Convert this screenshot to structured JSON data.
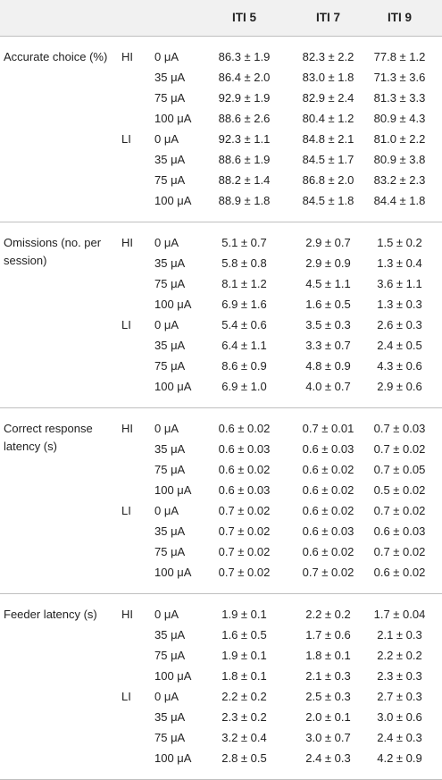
{
  "table": {
    "headers": [
      "ITI 5",
      "ITI 7",
      "ITI 9"
    ],
    "sections": [
      {
        "measure": "Accurate choice (%)",
        "groups": [
          {
            "name": "HI",
            "rows": [
              {
                "dose": "0 μA",
                "values": [
                  "86.3 ± 1.9",
                  "82.3 ± 2.2",
                  "77.8 ± 1.2"
                ]
              },
              {
                "dose": "35 μA",
                "values": [
                  "86.4 ± 2.0",
                  "83.0 ± 1.8",
                  "71.3 ± 3.6"
                ]
              },
              {
                "dose": "75 μA",
                "values": [
                  "92.9 ± 1.9",
                  "82.9 ± 2.4",
                  "81.3 ± 3.3"
                ]
              },
              {
                "dose": "100 μA",
                "values": [
                  "88.6 ± 2.6",
                  "80.4 ± 1.2",
                  "80.9 ± 4.3"
                ]
              }
            ]
          },
          {
            "name": "LI",
            "rows": [
              {
                "dose": "0 μA",
                "values": [
                  "92.3 ± 1.1",
                  "84.8 ± 2.1",
                  "81.0 ± 2.2"
                ]
              },
              {
                "dose": "35 μA",
                "values": [
                  "88.6 ± 1.9",
                  "84.5 ± 1.7",
                  "80.9 ± 3.8"
                ]
              },
              {
                "dose": "75 μA",
                "values": [
                  "88.2 ± 1.4",
                  "86.8 ± 2.0",
                  "83.2 ± 2.3"
                ]
              },
              {
                "dose": "100 μA",
                "values": [
                  "88.9 ± 1.8",
                  "84.5 ± 1.8",
                  "84.4 ± 1.8"
                ]
              }
            ]
          }
        ]
      },
      {
        "measure": "Omissions (no. per session)",
        "groups": [
          {
            "name": "HI",
            "rows": [
              {
                "dose": "0 μA",
                "values": [
                  "5.1 ± 0.7",
                  "2.9 ± 0.7",
                  "1.5 ± 0.2"
                ]
              },
              {
                "dose": "35 μA",
                "values": [
                  "5.8 ± 0.8",
                  "2.9 ± 0.9",
                  "1.3 ± 0.4"
                ]
              },
              {
                "dose": "75 μA",
                "values": [
                  "8.1 ± 1.2",
                  "4.5 ± 1.1",
                  "3.6 ± 1.1"
                ]
              },
              {
                "dose": "100 μA",
                "values": [
                  "6.9 ± 1.6",
                  "1.6 ± 0.5",
                  "1.3 ± 0.3"
                ]
              }
            ]
          },
          {
            "name": "LI",
            "rows": [
              {
                "dose": "0 μA",
                "values": [
                  "5.4 ± 0.6",
                  "3.5 ± 0.3",
                  "2.6 ± 0.3"
                ]
              },
              {
                "dose": "35 μA",
                "values": [
                  "6.4 ± 1.1",
                  "3.3 ± 0.7",
                  "2.4 ± 0.5"
                ]
              },
              {
                "dose": "75 μA",
                "values": [
                  "8.6 ± 0.9",
                  "4.8 ± 0.9",
                  "4.3 ± 0.6"
                ]
              },
              {
                "dose": "100 μA",
                "values": [
                  "6.9 ± 1.0",
                  "4.0 ± 0.7",
                  "2.9 ± 0.6"
                ]
              }
            ]
          }
        ]
      },
      {
        "measure": "Correct response latency (s)",
        "groups": [
          {
            "name": "HI",
            "rows": [
              {
                "dose": "0 μA",
                "values": [
                  "0.6 ± 0.02",
                  "0.7 ± 0.01",
                  "0.7 ± 0.03"
                ]
              },
              {
                "dose": "35 μA",
                "values": [
                  "0.6 ± 0.03",
                  "0.6 ± 0.03",
                  "0.7 ± 0.02"
                ]
              },
              {
                "dose": "75 μA",
                "values": [
                  "0.6 ± 0.02",
                  "0.6 ± 0.02",
                  "0.7 ± 0.05"
                ]
              },
              {
                "dose": "100 μA",
                "values": [
                  "0.6 ± 0.03",
                  "0.6 ± 0.02",
                  "0.5 ± 0.02"
                ]
              }
            ]
          },
          {
            "name": "LI",
            "rows": [
              {
                "dose": "0 μA",
                "values": [
                  "0.7 ± 0.02",
                  "0.6 ± 0.02",
                  "0.7 ± 0.02"
                ]
              },
              {
                "dose": "35 μA",
                "values": [
                  "0.7 ± 0.02",
                  "0.6 ± 0.03",
                  "0.6 ± 0.03"
                ]
              },
              {
                "dose": "75 μA",
                "values": [
                  "0.7 ± 0.02",
                  "0.6 ± 0.02",
                  "0.7 ± 0.02"
                ]
              },
              {
                "dose": "100 μA",
                "values": [
                  "0.7 ± 0.02",
                  "0.7 ± 0.02",
                  "0.6 ± 0.02"
                ]
              }
            ]
          }
        ]
      },
      {
        "measure": "Feeder latency (s)",
        "groups": [
          {
            "name": "HI",
            "rows": [
              {
                "dose": "0 μA",
                "values": [
                  "1.9 ± 0.1",
                  "2.2 ± 0.2",
                  "1.7 ± 0.04"
                ]
              },
              {
                "dose": "35 μA",
                "values": [
                  "1.6 ± 0.5",
                  "1.7 ± 0.6",
                  "2.1 ± 0.3"
                ]
              },
              {
                "dose": "75 μA",
                "values": [
                  "1.9 ± 0.1",
                  "1.8 ± 0.1",
                  "2.2 ± 0.2"
                ]
              },
              {
                "dose": "100 μA",
                "values": [
                  "1.8 ± 0.1",
                  "2.1 ± 0.3",
                  "2.3 ± 0.3"
                ]
              }
            ]
          },
          {
            "name": "LI",
            "rows": [
              {
                "dose": "0 μA",
                "values": [
                  "2.2 ± 0.2",
                  "2.5 ± 0.3",
                  "2.7 ± 0.3"
                ]
              },
              {
                "dose": "35 μA",
                "values": [
                  "2.3 ± 0.2",
                  "2.0 ± 0.1",
                  "3.0 ± 0.6"
                ]
              },
              {
                "dose": "75 μA",
                "values": [
                  "3.2 ± 0.4",
                  "3.0 ± 0.7",
                  "2.4 ± 0.3"
                ]
              },
              {
                "dose": "100 μA",
                "values": [
                  "2.8 ± 0.5",
                  "2.4 ± 0.3",
                  "4.2 ± 0.9"
                ]
              }
            ]
          }
        ]
      }
    ]
  }
}
